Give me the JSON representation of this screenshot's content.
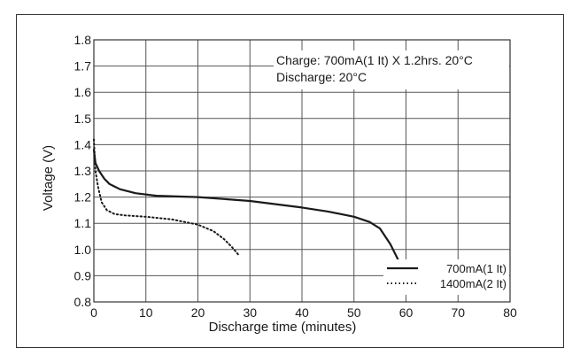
{
  "chart_data": {
    "type": "line",
    "xlabel": "Discharge time (minutes)",
    "ylabel": "Voltage (V)",
    "xlim": [
      0,
      80
    ],
    "ylim": [
      0.8,
      1.8
    ],
    "x_ticks": [
      "0",
      "10",
      "20",
      "30",
      "40",
      "50",
      "60",
      "70",
      "80"
    ],
    "y_ticks": [
      "0.8",
      "0.9",
      "1.0",
      "1.1",
      "1.2",
      "1.3",
      "1.4",
      "1.5",
      "1.6",
      "1.7",
      "1.8"
    ],
    "grid": true,
    "annotations": [
      "Charge: 700mA(1 It) X 1.2hrs. 20°C",
      "Discharge: 20°C"
    ],
    "legend_position": "bottom-right",
    "series": [
      {
        "name": "700mA(1 It)",
        "style": "solid",
        "x": [
          0,
          0.3,
          1,
          2,
          3,
          5,
          8,
          12,
          20,
          30,
          40,
          45,
          50,
          53,
          55,
          56,
          57,
          58,
          58.5
        ],
        "y": [
          1.38,
          1.33,
          1.3,
          1.27,
          1.25,
          1.23,
          1.215,
          1.205,
          1.2,
          1.185,
          1.16,
          1.145,
          1.125,
          1.105,
          1.08,
          1.05,
          1.02,
          0.98,
          0.96
        ]
      },
      {
        "name": "1400mA(2 It)",
        "style": "dotted",
        "x": [
          0,
          0.3,
          0.8,
          1.5,
          2.5,
          4,
          6,
          10,
          15,
          20,
          23,
          25,
          26.5,
          28
        ],
        "y": [
          1.42,
          1.3,
          1.24,
          1.18,
          1.15,
          1.135,
          1.13,
          1.125,
          1.115,
          1.095,
          1.07,
          1.04,
          1.01,
          0.975
        ]
      }
    ],
    "colors": {
      "line": "#1a1a1a",
      "grid": "#555555"
    }
  }
}
